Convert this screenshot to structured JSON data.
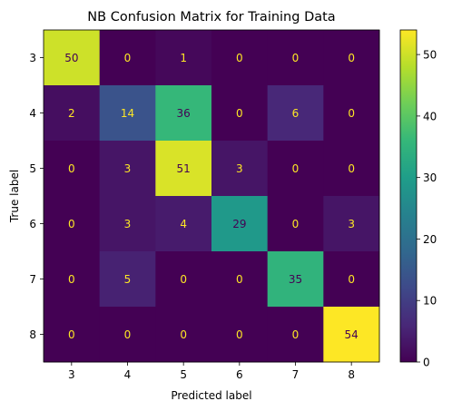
{
  "chart_data": {
    "type": "heatmap",
    "title": "NB Confusion Matrix for Training Data",
    "xlabel": "Predicted label",
    "ylabel": "True label",
    "x_categories": [
      "3",
      "4",
      "5",
      "6",
      "7",
      "8"
    ],
    "y_categories": [
      "3",
      "4",
      "5",
      "6",
      "7",
      "8"
    ],
    "values": [
      [
        50,
        0,
        1,
        0,
        0,
        0
      ],
      [
        2,
        14,
        36,
        0,
        6,
        0
      ],
      [
        0,
        3,
        51,
        3,
        0,
        0
      ],
      [
        0,
        3,
        4,
        29,
        0,
        3
      ],
      [
        0,
        5,
        0,
        0,
        35,
        0
      ],
      [
        0,
        0,
        0,
        0,
        0,
        54
      ]
    ],
    "colormap": "viridis",
    "value_range": [
      0,
      54
    ],
    "colorbar_ticks": [
      0,
      10,
      20,
      30,
      40,
      50
    ],
    "label_colors": {
      "dark": "#440154",
      "light": "#fde725"
    }
  }
}
